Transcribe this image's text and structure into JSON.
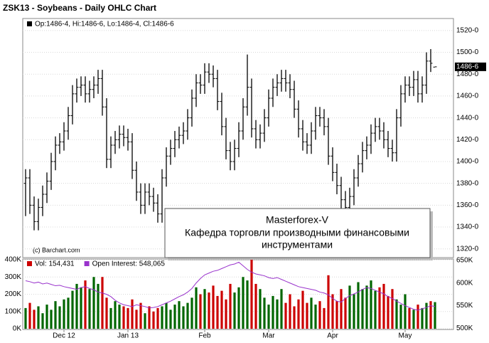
{
  "chart_data": [
    {
      "type": "ohlc",
      "title": "ZSK13 - Soybeans - Daily OHLC Chart",
      "legend_text": "Op:1486-4, Hi:1486-6, Lo:1486-4, Cl:1486-6",
      "last_price_label": "1486-6",
      "credit": "(c) Barchart.com",
      "color": "#000000",
      "open": [
        1380,
        1385,
        1360,
        1345,
        1358,
        1370,
        1382,
        1400,
        1415,
        1418,
        1428,
        1442,
        1462,
        1468,
        1470,
        1462,
        1466,
        1470,
        1476,
        1450,
        1402,
        1415,
        1420,
        1425,
        1422,
        1418,
        1392,
        1372,
        1360,
        1372,
        1368,
        1362,
        1352,
        1385,
        1405,
        1412,
        1420,
        1424,
        1428,
        1440,
        1458,
        1472,
        1470,
        1482,
        1480,
        1476,
        1455,
        1432,
        1410,
        1400,
        1412,
        1428,
        1450,
        1468,
        1430,
        1420,
        1426,
        1440,
        1458,
        1468,
        1472,
        1476,
        1472,
        1466,
        1448,
        1430,
        1418,
        1415,
        1428,
        1442,
        1440,
        1432,
        1405,
        1390,
        1378,
        1365,
        1358,
        1368,
        1385,
        1398,
        1410,
        1415,
        1426,
        1432,
        1428,
        1420,
        1412,
        1408,
        1440,
        1462,
        1470,
        1468,
        1475,
        1462,
        1470,
        1492,
        1486.5
      ],
      "high": [
        1393,
        1393,
        1368,
        1366,
        1378,
        1390,
        1408,
        1423,
        1426,
        1436,
        1450,
        1470,
        1476,
        1478,
        1478,
        1474,
        1478,
        1484,
        1484,
        1458,
        1423,
        1428,
        1433,
        1433,
        1430,
        1426,
        1400,
        1380,
        1380,
        1380,
        1376,
        1370,
        1393,
        1413,
        1420,
        1428,
        1432,
        1436,
        1448,
        1466,
        1480,
        1480,
        1490,
        1490,
        1488,
        1484,
        1463,
        1440,
        1418,
        1420,
        1436,
        1458,
        1498,
        1476,
        1438,
        1434,
        1448,
        1466,
        1476,
        1480,
        1484,
        1484,
        1480,
        1474,
        1456,
        1438,
        1426,
        1436,
        1450,
        1450,
        1448,
        1440,
        1413,
        1398,
        1386,
        1373,
        1376,
        1393,
        1406,
        1418,
        1423,
        1434,
        1440,
        1440,
        1436,
        1428,
        1420,
        1448,
        1470,
        1478,
        1478,
        1483,
        1483,
        1478,
        1500,
        1503,
        1486.75
      ],
      "low": [
        1350,
        1352,
        1337,
        1337,
        1350,
        1362,
        1374,
        1392,
        1407,
        1410,
        1420,
        1434,
        1454,
        1460,
        1454,
        1454,
        1458,
        1462,
        1442,
        1394,
        1394,
        1407,
        1412,
        1414,
        1410,
        1384,
        1364,
        1352,
        1352,
        1360,
        1354,
        1344,
        1344,
        1377,
        1397,
        1404,
        1412,
        1416,
        1420,
        1432,
        1450,
        1462,
        1462,
        1472,
        1468,
        1447,
        1424,
        1402,
        1392,
        1392,
        1404,
        1420,
        1442,
        1422,
        1412,
        1412,
        1418,
        1432,
        1450,
        1460,
        1464,
        1464,
        1458,
        1440,
        1422,
        1410,
        1407,
        1407,
        1420,
        1432,
        1424,
        1397,
        1382,
        1370,
        1357,
        1350,
        1350,
        1360,
        1377,
        1390,
        1402,
        1407,
        1418,
        1420,
        1412,
        1404,
        1400,
        1400,
        1432,
        1454,
        1460,
        1460,
        1454,
        1454,
        1462,
        1482,
        1486.5
      ],
      "close": [
        1385,
        1360,
        1345,
        1358,
        1370,
        1382,
        1400,
        1415,
        1418,
        1428,
        1442,
        1462,
        1468,
        1470,
        1462,
        1466,
        1470,
        1476,
        1450,
        1402,
        1415,
        1420,
        1425,
        1422,
        1418,
        1392,
        1372,
        1360,
        1372,
        1368,
        1362,
        1352,
        1385,
        1405,
        1412,
        1420,
        1424,
        1428,
        1440,
        1458,
        1472,
        1470,
        1482,
        1480,
        1476,
        1455,
        1432,
        1410,
        1400,
        1412,
        1428,
        1450,
        1468,
        1430,
        1420,
        1426,
        1440,
        1458,
        1468,
        1472,
        1476,
        1472,
        1466,
        1448,
        1430,
        1418,
        1415,
        1428,
        1442,
        1440,
        1432,
        1405,
        1390,
        1378,
        1365,
        1358,
        1368,
        1385,
        1398,
        1410,
        1415,
        1426,
        1432,
        1428,
        1420,
        1412,
        1408,
        1440,
        1462,
        1470,
        1468,
        1475,
        1462,
        1470,
        1492,
        1490,
        1486.75
      ],
      "ylim": [
        1312,
        1531
      ],
      "yticks": [
        {
          "value": 1320,
          "label": "1320-0"
        },
        {
          "value": 1340,
          "label": "1340-0"
        },
        {
          "value": 1360,
          "label": "1360-0"
        },
        {
          "value": 1380,
          "label": "1380-0"
        },
        {
          "value": 1400,
          "label": "1400-0"
        },
        {
          "value": 1420,
          "label": "1420-0"
        },
        {
          "value": 1440,
          "label": "1440-0"
        },
        {
          "value": 1460,
          "label": "1460-0"
        },
        {
          "value": 1480,
          "label": "1480-0"
        },
        {
          "value": 1500,
          "label": "1500-0"
        },
        {
          "value": 1520,
          "label": "1520-0"
        }
      ],
      "grid": true
    },
    {
      "type": "bar_line",
      "up_color": "#006600",
      "down_color": "#cc0000",
      "categories": [
        null,
        null,
        null,
        null,
        null,
        null,
        null,
        null,
        null,
        "Dec 12",
        null,
        null,
        null,
        null,
        null,
        null,
        null,
        null,
        null,
        null,
        null,
        null,
        null,
        null,
        "Jan 13",
        null,
        null,
        null,
        null,
        null,
        null,
        null,
        null,
        null,
        null,
        null,
        null,
        null,
        null,
        null,
        null,
        null,
        "Feb",
        null,
        null,
        null,
        null,
        null,
        null,
        null,
        null,
        null,
        null,
        null,
        null,
        null,
        null,
        "Mar",
        null,
        null,
        null,
        null,
        null,
        null,
        null,
        null,
        null,
        null,
        null,
        null,
        null,
        null,
        "Apr",
        null,
        null,
        null,
        null,
        null,
        null,
        null,
        null,
        null,
        null,
        null,
        null,
        null,
        null,
        null,
        null,
        "May",
        null,
        null,
        null,
        null,
        null,
        null,
        null
      ],
      "series": [
        {
          "name": "Vol: 154,431",
          "color": "#cc0000",
          "values": [
            120000,
            150000,
            110000,
            130000,
            90000,
            140000,
            110000,
            160000,
            130000,
            170000,
            180000,
            220000,
            260000,
            240000,
            280000,
            230000,
            300000,
            260000,
            300000,
            180000,
            120000,
            160000,
            140000,
            130000,
            120000,
            170000,
            110000,
            150000,
            90000,
            130000,
            100000,
            120000,
            130000,
            150000,
            110000,
            140000,
            160000,
            130000,
            150000,
            180000,
            240000,
            200000,
            230000,
            210000,
            250000,
            190000,
            220000,
            170000,
            260000,
            210000,
            240000,
            300000,
            280000,
            400000,
            260000,
            230000,
            180000,
            140000,
            190000,
            170000,
            230000,
            150000,
            200000,
            130000,
            170000,
            220000,
            150000,
            180000,
            140000,
            160000,
            120000,
            310000,
            200000,
            160000,
            230000,
            180000,
            250000,
            200000,
            270000,
            230000,
            250000,
            280000,
            220000,
            240000,
            260000,
            190000,
            230000,
            170000,
            140000,
            200000,
            120000,
            110000,
            140000,
            120000,
            150000,
            160000,
            154431
          ]
        },
        {
          "name": "Open Interest: 548,065",
          "color": "#9933cc",
          "axis": "y2",
          "values": [
            605000,
            603000,
            600000,
            602000,
            598000,
            600000,
            597000,
            594000,
            595000,
            592000,
            590000,
            588000,
            586000,
            590000,
            592000,
            588000,
            585000,
            580000,
            578000,
            575000,
            570000,
            562000,
            556000,
            552000,
            550000,
            548000,
            552000,
            550000,
            548000,
            545000,
            546000,
            548000,
            552000,
            556000,
            560000,
            565000,
            570000,
            574000,
            580000,
            588000,
            600000,
            610000,
            618000,
            622000,
            626000,
            628000,
            632000,
            636000,
            640000,
            642000,
            646000,
            638000,
            630000,
            624000,
            620000,
            618000,
            616000,
            612000,
            610000,
            612000,
            608000,
            604000,
            600000,
            596000,
            592000,
            590000,
            588000,
            586000,
            584000,
            580000,
            578000,
            574000,
            566000,
            560000,
            558000,
            566000,
            572000,
            576000,
            580000,
            586000,
            590000,
            588000,
            584000,
            580000,
            576000,
            570000,
            566000,
            560000,
            555000,
            550000,
            546000,
            542000,
            540000,
            543000,
            546000,
            550000,
            548065
          ]
        }
      ],
      "ylim": [
        0,
        404000
      ],
      "yticks": [
        {
          "value": 0,
          "label": "0K"
        },
        {
          "value": 100000,
          "label": "100K"
        },
        {
          "value": 200000,
          "label": "200K"
        },
        {
          "value": 300000,
          "label": "300K"
        },
        {
          "value": 400000,
          "label": "400K"
        }
      ],
      "y2lim": [
        499000,
        653000
      ],
      "y2ticks": [
        {
          "value": 500000,
          "label": "500K"
        },
        {
          "value": 550000,
          "label": "550K"
        },
        {
          "value": 600000,
          "label": "600K"
        },
        {
          "value": 650000,
          "label": "650K"
        }
      ],
      "grid": true
    }
  ],
  "annotation": {
    "title": "Masterforex-V",
    "lines": [
      "Кафедра торговли производными финансовыми",
      "инструментами"
    ]
  }
}
